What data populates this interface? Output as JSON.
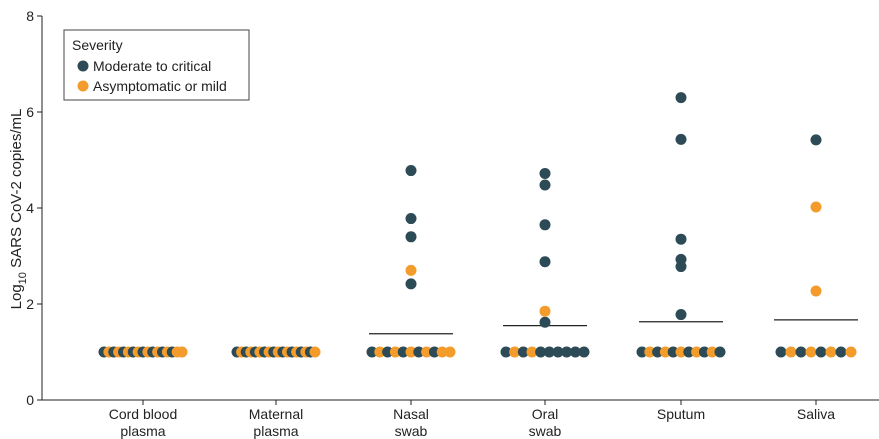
{
  "chart_data": {
    "type": "scatter",
    "title": "",
    "xlabel": "",
    "ylabel": {
      "prefix": "Log",
      "subscript": "10",
      "suffix": " SARS CoV-2 copies/mL"
    },
    "ylim": [
      0,
      8
    ],
    "yticks": [
      "0",
      "2",
      "4",
      "6",
      "8"
    ],
    "grid": false,
    "categories": [
      [
        "Cord blood",
        "plasma"
      ],
      [
        "Maternal",
        "plasma"
      ],
      [
        "Nasal",
        "swab"
      ],
      [
        "Oral",
        "swab"
      ],
      [
        "Sputum"
      ],
      [
        "Saliva"
      ]
    ],
    "legend": {
      "title": "Severity",
      "position": "top-left"
    },
    "series": [
      {
        "name": "Moderate to critical",
        "color": "#2d4b57",
        "points": [
          {
            "category": 0,
            "y": 1.0
          },
          {
            "category": 0,
            "y": 1.0
          },
          {
            "category": 0,
            "y": 1.0
          },
          {
            "category": 0,
            "y": 1.0
          },
          {
            "category": 0,
            "y": 1.0
          },
          {
            "category": 0,
            "y": 1.0
          },
          {
            "category": 0,
            "y": 1.0
          },
          {
            "category": 0,
            "y": 1.0
          },
          {
            "category": 1,
            "y": 1.0
          },
          {
            "category": 1,
            "y": 1.0
          },
          {
            "category": 1,
            "y": 1.0
          },
          {
            "category": 1,
            "y": 1.0
          },
          {
            "category": 1,
            "y": 1.0
          },
          {
            "category": 1,
            "y": 1.0
          },
          {
            "category": 1,
            "y": 1.0
          },
          {
            "category": 1,
            "y": 1.0
          },
          {
            "category": 1,
            "y": 1.0
          },
          {
            "category": 2,
            "y": 4.78
          },
          {
            "category": 2,
            "y": 3.78
          },
          {
            "category": 2,
            "y": 3.4
          },
          {
            "category": 2,
            "y": 2.42
          },
          {
            "category": 2,
            "y": 1.0
          },
          {
            "category": 2,
            "y": 1.0
          },
          {
            "category": 2,
            "y": 1.0
          },
          {
            "category": 2,
            "y": 1.0
          },
          {
            "category": 2,
            "y": 1.0
          },
          {
            "category": 3,
            "y": 4.72
          },
          {
            "category": 3,
            "y": 4.48
          },
          {
            "category": 3,
            "y": 3.65
          },
          {
            "category": 3,
            "y": 2.88
          },
          {
            "category": 3,
            "y": 1.62
          },
          {
            "category": 3,
            "y": 1.0
          },
          {
            "category": 3,
            "y": 1.0
          },
          {
            "category": 3,
            "y": 1.0
          },
          {
            "category": 3,
            "y": 1.0
          },
          {
            "category": 3,
            "y": 1.0
          },
          {
            "category": 3,
            "y": 1.0
          },
          {
            "category": 3,
            "y": 1.0
          },
          {
            "category": 3,
            "y": 1.0
          },
          {
            "category": 4,
            "y": 6.3
          },
          {
            "category": 4,
            "y": 5.43
          },
          {
            "category": 4,
            "y": 3.35
          },
          {
            "category": 4,
            "y": 2.93
          },
          {
            "category": 4,
            "y": 2.78
          },
          {
            "category": 4,
            "y": 1.78
          },
          {
            "category": 4,
            "y": 1.0
          },
          {
            "category": 4,
            "y": 1.0
          },
          {
            "category": 4,
            "y": 1.0
          },
          {
            "category": 4,
            "y": 1.0
          },
          {
            "category": 4,
            "y": 1.0
          },
          {
            "category": 4,
            "y": 1.0
          },
          {
            "category": 5,
            "y": 5.42
          },
          {
            "category": 5,
            "y": 1.0
          },
          {
            "category": 5,
            "y": 1.0
          },
          {
            "category": 5,
            "y": 1.0
          },
          {
            "category": 5,
            "y": 1.0
          }
        ]
      },
      {
        "name": "Asymptomatic or mild",
        "color": "#f39c2b",
        "points": [
          {
            "category": 0,
            "y": 1.0
          },
          {
            "category": 0,
            "y": 1.0
          },
          {
            "category": 0,
            "y": 1.0
          },
          {
            "category": 0,
            "y": 1.0
          },
          {
            "category": 0,
            "y": 1.0
          },
          {
            "category": 0,
            "y": 1.0
          },
          {
            "category": 0,
            "y": 1.0
          },
          {
            "category": 0,
            "y": 1.0
          },
          {
            "category": 0,
            "y": 1.0
          },
          {
            "category": 1,
            "y": 1.0
          },
          {
            "category": 1,
            "y": 1.0
          },
          {
            "category": 1,
            "y": 1.0
          },
          {
            "category": 1,
            "y": 1.0
          },
          {
            "category": 1,
            "y": 1.0
          },
          {
            "category": 1,
            "y": 1.0
          },
          {
            "category": 1,
            "y": 1.0
          },
          {
            "category": 1,
            "y": 1.0
          },
          {
            "category": 1,
            "y": 1.0
          },
          {
            "category": 2,
            "y": 2.7
          },
          {
            "category": 2,
            "y": 1.0
          },
          {
            "category": 2,
            "y": 1.0
          },
          {
            "category": 2,
            "y": 1.0
          },
          {
            "category": 2,
            "y": 1.0
          },
          {
            "category": 2,
            "y": 1.0
          },
          {
            "category": 2,
            "y": 1.0
          },
          {
            "category": 3,
            "y": 1.85
          },
          {
            "category": 3,
            "y": 1.0
          },
          {
            "category": 3,
            "y": 1.0
          },
          {
            "category": 4,
            "y": 1.0
          },
          {
            "category": 4,
            "y": 1.0
          },
          {
            "category": 4,
            "y": 1.0
          },
          {
            "category": 4,
            "y": 1.0
          },
          {
            "category": 4,
            "y": 1.0
          },
          {
            "category": 5,
            "y": 4.02
          },
          {
            "category": 5,
            "y": 2.27
          },
          {
            "category": 5,
            "y": 1.0
          },
          {
            "category": 5,
            "y": 1.0
          },
          {
            "category": 5,
            "y": 1.0
          },
          {
            "category": 5,
            "y": 1.0
          }
        ]
      }
    ],
    "medians": [
      1.0,
      1.0,
      1.38,
      1.55,
      1.63,
      1.67
    ]
  }
}
